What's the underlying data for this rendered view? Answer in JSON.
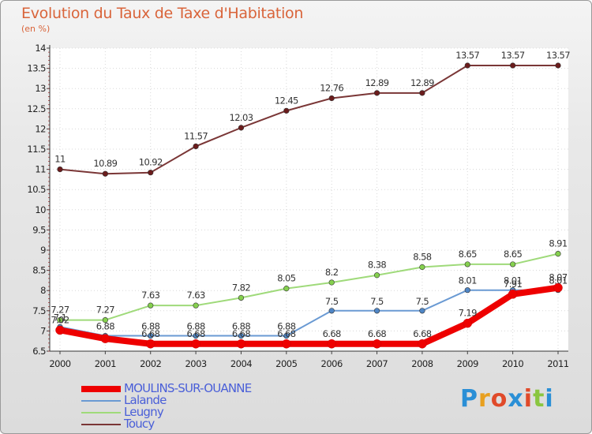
{
  "chart_data": {
    "type": "line",
    "title": "Evolution du Taux de Taxe d'Habitation",
    "ylabel": "(en %)",
    "xlabel": "",
    "categories": [
      "2000",
      "2001",
      "2002",
      "2003",
      "2004",
      "2005",
      "2006",
      "2007",
      "2008",
      "2009",
      "2010",
      "2011"
    ],
    "ylim": [
      6.5,
      14
    ],
    "yticks": [
      "6.5",
      "7",
      "7.5",
      "8",
      "8.5",
      "9",
      "9.5",
      "10",
      "10.5",
      "11",
      "11.5",
      "12",
      "12.5",
      "13",
      "13.5",
      "14"
    ],
    "series": [
      {
        "name": "MOULINS-SUR-OUANNE",
        "color": "#ee0000",
        "marker": "#ee0000",
        "values": [
          7.02,
          6.81,
          6.68,
          6.68,
          6.68,
          6.68,
          6.68,
          6.68,
          6.68,
          7.19,
          7.91,
          8.07
        ],
        "labels": [
          "7.02",
          "",
          "6.68",
          "6.68",
          "6.68",
          "6.68",
          "6.68",
          "6.68",
          "6.68",
          "7.19",
          "7.91",
          "8.07"
        ]
      },
      {
        "name": "Lalande",
        "color": "#6a9ad3",
        "marker": "#4f86c6",
        "values": [
          7.1,
          6.88,
          6.88,
          6.88,
          6.88,
          6.88,
          7.5,
          7.5,
          7.5,
          8.01,
          8.01,
          8.01
        ],
        "labels": [
          "7.1",
          "6.88",
          "6.88",
          "6.88",
          "6.88",
          "6.88",
          "7.5",
          "7.5",
          "7.5",
          "8.01",
          "8.01",
          "8.01"
        ]
      },
      {
        "name": "Leugny",
        "color": "#9fda7a",
        "marker": "#85d04e",
        "values": [
          7.27,
          7.27,
          7.63,
          7.63,
          7.82,
          8.05,
          8.2,
          8.38,
          8.58,
          8.65,
          8.65,
          8.91
        ],
        "labels": [
          "7.27",
          "7.27",
          "7.63",
          "7.63",
          "7.82",
          "8.05",
          "8.2",
          "8.38",
          "8.58",
          "8.65",
          "8.65",
          "8.91"
        ]
      },
      {
        "name": "Toucy",
        "color": "#7a3636",
        "marker": "#6b1c1c",
        "values": [
          11,
          10.89,
          10.92,
          11.57,
          12.03,
          12.45,
          12.76,
          12.89,
          12.89,
          13.57,
          13.57,
          13.57
        ],
        "labels": [
          "11",
          "10.89",
          "10.92",
          "11.57",
          "12.03",
          "12.45",
          "12.76",
          "12.89",
          "12.89",
          "13.57",
          "13.57",
          "13.57"
        ]
      }
    ]
  },
  "legend": {
    "items": [
      "MOULINS-SUR-OUANNE",
      "Lalande",
      "Leugny",
      "Toucy"
    ],
    "colors": [
      "#ee0000",
      "#6a9ad3",
      "#9fda7a",
      "#7a3636"
    ],
    "text_colors": [
      "#4a5fd8",
      "#4a5fd8",
      "#4a5fd8",
      "#4a5fd8"
    ]
  },
  "brand": {
    "letters": [
      "P",
      "r",
      "o",
      "x",
      "i",
      "t",
      "i"
    ],
    "colors": [
      "#2a8fd6",
      "#e8a020",
      "#e04a2a",
      "#2a8fd6",
      "#e04a2a",
      "#8ac640",
      "#2a8fd6"
    ]
  }
}
